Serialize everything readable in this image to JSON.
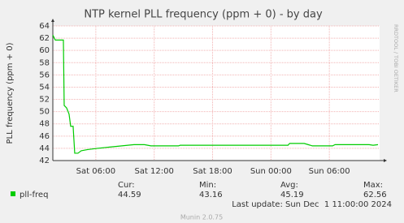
{
  "chart_data": {
    "type": "line",
    "title": "NTP kernel PLL frequency (ppm + 0) - by day",
    "y_label": "PLL frequency (ppm + 0)",
    "side_text": "RRDTOOL / TOBI OETIKER",
    "x": [
      "Sat 01:35",
      "Sat 01:50",
      "Sat 02:40",
      "Sat 02:45",
      "Sat 03:00",
      "Sat 03:15",
      "Sat 03:25",
      "Sat 03:40",
      "Sat 03:50",
      "Sat 04:10",
      "Sat 04:30",
      "Sat 05:10",
      "Sat 06:10",
      "Sat 07:25",
      "Sat 08:40",
      "Sat 09:55",
      "Sat 11:00",
      "Sat 11:40",
      "Sat 14:30",
      "Sat 14:40",
      "Sun 01:45",
      "Sun 01:55",
      "Sun 03:25",
      "Sun 03:50",
      "Sun 04:15",
      "Sun 06:20",
      "Sun 06:35",
      "Sun 10:05",
      "Sun 10:30",
      "Sun 11:00"
    ],
    "series": [
      {
        "name": "pll-freq",
        "color": "#00cc00",
        "values": [
          62.5,
          61.7,
          61.7,
          51.0,
          50.6,
          49.6,
          47.6,
          47.6,
          43.2,
          43.2,
          43.6,
          43.8,
          44.0,
          44.2,
          44.4,
          44.6,
          44.6,
          44.4,
          44.4,
          44.5,
          44.5,
          44.8,
          44.8,
          44.6,
          44.4,
          44.4,
          44.6,
          44.6,
          44.5,
          44.6
        ]
      }
    ],
    "xlim": [
      "Sat 01:35",
      "Sun 11:10"
    ],
    "xticks": [
      "Sat 06:00",
      "Sat 12:00",
      "Sat 18:00",
      "Sun 00:00",
      "Sun 06:00"
    ],
    "ylim": [
      42,
      64
    ],
    "yticks": [
      42,
      44,
      46,
      48,
      50,
      52,
      54,
      56,
      58,
      60,
      62,
      64
    ],
    "grid": true,
    "stats": [
      {
        "label": "Cur:",
        "value": 44.59
      },
      {
        "label": "Min:",
        "value": 43.16
      },
      {
        "label": "Avg:",
        "value": 45.19
      },
      {
        "label": "Max:",
        "value": 62.56
      }
    ],
    "last_update": "Last update: Sun Dec  1 11:00:00 2024",
    "footer": "Munin 2.0.75"
  }
}
